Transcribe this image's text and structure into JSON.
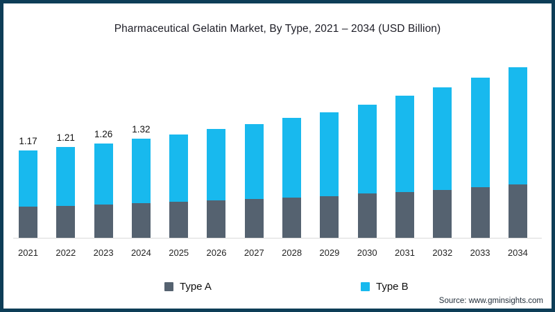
{
  "chart": {
    "title": "Pharmaceutical Gelatin Market, By Type, 2021 – 2034 (USD Billion)"
  },
  "chart_data": {
    "type": "bar",
    "stacked": true,
    "title": "Pharmaceutical Gelatin Market, By Type, 2021 – 2034 (USD Billion)",
    "xlabel": "",
    "ylabel": "",
    "unit": "USD Billion",
    "grid": false,
    "legend_position": "bottom",
    "axis_line_color": "#d9d9d9",
    "categories": [
      "2021",
      "2022",
      "2023",
      "2024",
      "2025",
      "2026",
      "2027",
      "2028",
      "2029",
      "2030",
      "2031",
      "2032",
      "2033",
      "2034"
    ],
    "series": [
      {
        "name": "Type A",
        "color": "#556270",
        "values": [
          0.42,
          0.43,
          0.44,
          0.46,
          0.48,
          0.5,
          0.52,
          0.54,
          0.56,
          0.59,
          0.61,
          0.64,
          0.68,
          0.71
        ]
      },
      {
        "name": "Type B",
        "color": "#18b9ee",
        "values": [
          0.75,
          0.78,
          0.82,
          0.86,
          0.9,
          0.95,
          1.0,
          1.06,
          1.12,
          1.19,
          1.29,
          1.37,
          1.46,
          1.57
        ]
      }
    ],
    "totals": [
      1.17,
      1.21,
      1.26,
      1.32,
      1.38,
      1.45,
      1.52,
      1.6,
      1.68,
      1.78,
      1.9,
      2.01,
      2.14,
      2.28
    ],
    "bar_value_labels": [
      "1.17",
      "1.21",
      "1.26",
      "1.32",
      null,
      null,
      null,
      null,
      null,
      null,
      null,
      null,
      null,
      null
    ]
  },
  "legend": [
    {
      "label": "Type A",
      "color": "#556270"
    },
    {
      "label": "Type B",
      "color": "#18b9ee"
    }
  ],
  "source": "Source: www.gminsights.com",
  "frame_color": "#0d3d57"
}
